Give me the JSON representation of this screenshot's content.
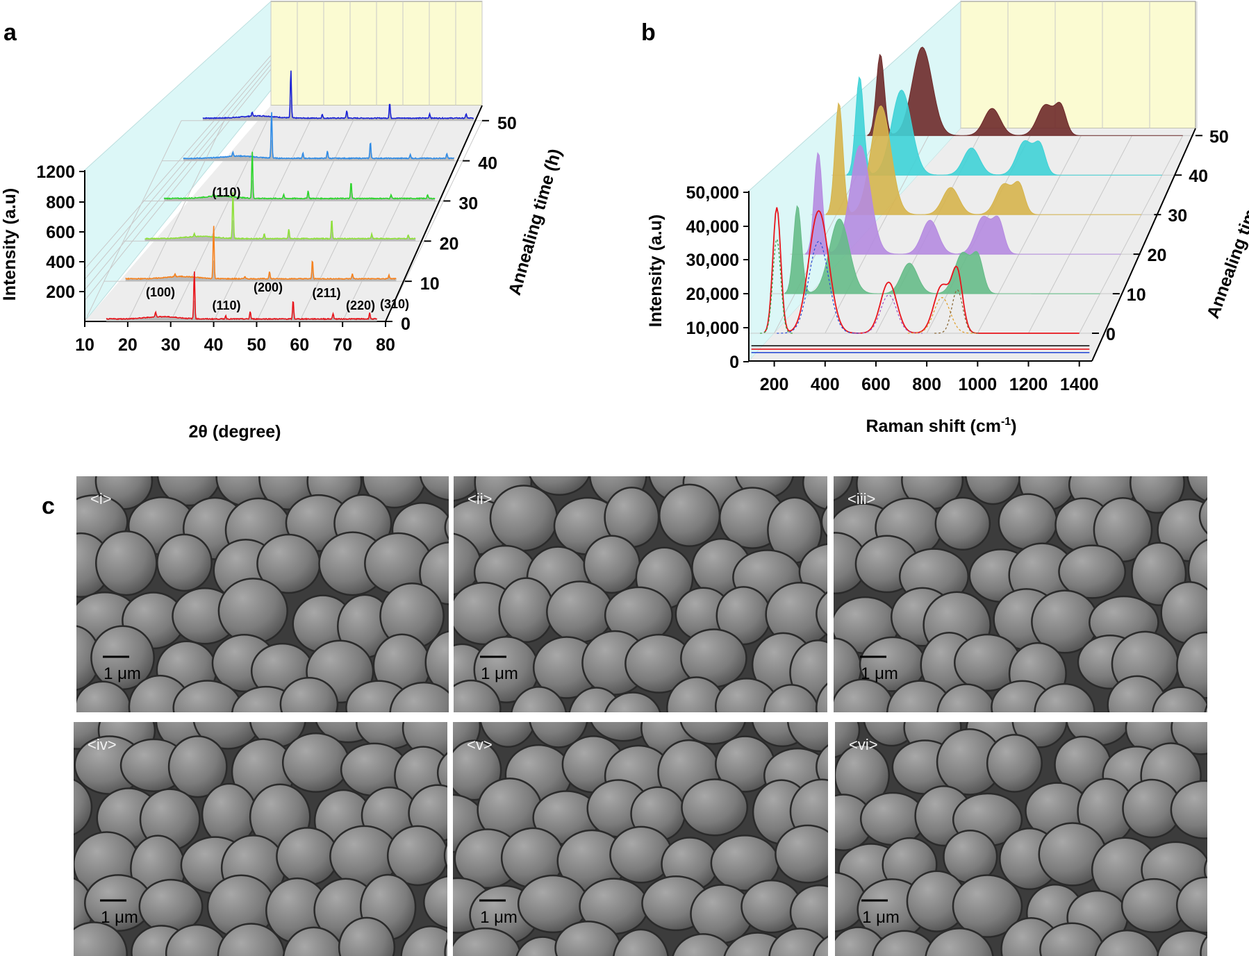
{
  "panels": {
    "a": {
      "letter": "a",
      "y_ticks": [
        "1200",
        "800",
        "600",
        "400",
        "200"
      ],
      "x_ticks": [
        "10",
        "20",
        "30",
        "40",
        "50",
        "60",
        "70",
        "80"
      ],
      "z_ticks": [
        "0",
        "10",
        "20",
        "30",
        "40",
        "50"
      ],
      "xlabel": "2θ (degree)",
      "ylabel": "Intensity (a.u)",
      "zlabel": "Annealing time (h)",
      "annotations": [
        "(100)",
        "(110)",
        "(200)",
        "(211)",
        "(220)",
        "(310)",
        "(110)",
        "(110)"
      ]
    },
    "b": {
      "letter": "b",
      "y_ticks": [
        "50,000",
        "40,000",
        "30,000",
        "20,000",
        "10,000",
        "0"
      ],
      "x_ticks": [
        "200",
        "400",
        "600",
        "800",
        "1000",
        "1200",
        "1400"
      ],
      "z_ticks": [
        "0",
        "10",
        "20",
        "30",
        "40",
        "50"
      ],
      "xlabel": "Raman shift (cm",
      "xlabel_sup": "-1",
      "xlabel_end": ")",
      "ylabel": "Intensity (a.u)",
      "zlabel": "Annealing time (h)"
    },
    "c": {
      "letter": "c",
      "images": [
        {
          "label": "<i>",
          "scale": "1 μm"
        },
        {
          "label": "<ii>",
          "scale": "1 μm"
        },
        {
          "label": "<iii>",
          "scale": "1 μm"
        },
        {
          "label": "<iv>",
          "scale": "1 μm"
        },
        {
          "label": "<v>",
          "scale": "1 μm"
        },
        {
          "label": "<vi>",
          "scale": "1 μm"
        }
      ]
    }
  },
  "chart_data": [
    {
      "type": "line",
      "panel": "a",
      "view": "3d-waterfall",
      "xlabel": "2θ (degree)",
      "ylabel": "Intensity (a.u)",
      "zlabel": "Annealing time (h)",
      "xlim": [
        10,
        80
      ],
      "z_values": [
        0,
        10,
        20,
        30,
        40,
        50
      ],
      "series": [
        {
          "z": 0,
          "color": "#e8141b",
          "peaks": [
            [
              26.5,
              40
            ],
            [
              35.5,
              380
            ],
            [
              42.8,
              25
            ],
            [
              48.5,
              60
            ],
            [
              58.5,
              150
            ],
            [
              67.8,
              45
            ],
            [
              76.3,
              50
            ]
          ]
        },
        {
          "z": 10,
          "color": "#f5821f",
          "peaks": [
            [
              26.5,
              20
            ],
            [
              35.5,
              420
            ],
            [
              42.8,
              20
            ],
            [
              48.5,
              60
            ],
            [
              58.5,
              150
            ],
            [
              67.8,
              40
            ],
            [
              76.3,
              30
            ]
          ]
        },
        {
          "z": 20,
          "color": "#8ee03a",
          "peaks": [
            [
              26.5,
              25
            ],
            [
              35.5,
              370
            ],
            [
              42.8,
              40
            ],
            [
              48.5,
              75
            ],
            [
              58.5,
              150
            ],
            [
              67.8,
              35
            ],
            [
              76.3,
              30
            ]
          ]
        },
        {
          "z": 30,
          "color": "#2bd52a",
          "peaks": [
            [
              26.5,
              30
            ],
            [
              35.5,
              370
            ],
            [
              42.8,
              30
            ],
            [
              48.5,
              60
            ],
            [
              58.5,
              130
            ],
            [
              67.8,
              30
            ],
            [
              76.3,
              30
            ]
          ]
        },
        {
          "z": 40,
          "color": "#2f8be6",
          "peaks": [
            [
              26.5,
              35
            ],
            [
              35.5,
              370
            ],
            [
              42.8,
              40
            ],
            [
              48.5,
              60
            ],
            [
              58.5,
              130
            ],
            [
              67.8,
              30
            ],
            [
              76.3,
              35
            ]
          ]
        },
        {
          "z": 50,
          "color": "#1a22d6",
          "peaks": [
            [
              26.5,
              30
            ],
            [
              35.5,
              380
            ],
            [
              42.8,
              30
            ],
            [
              48.5,
              60
            ],
            [
              58.5,
              120
            ],
            [
              67.8,
              35
            ],
            [
              76.3,
              35
            ]
          ]
        }
      ],
      "peak_labels": [
        {
          "label": "(100)",
          "x": 26.5
        },
        {
          "label": "(110)",
          "x": 42.8
        },
        {
          "label": "(200)",
          "x": 48.5
        },
        {
          "label": "(211)",
          "x": 58.5
        },
        {
          "label": "(220)",
          "x": 67.8
        },
        {
          "label": "(310)",
          "x": 76.3
        },
        {
          "label": "(110)",
          "x": 35.5
        }
      ]
    },
    {
      "type": "area",
      "panel": "b",
      "view": "3d-waterfall",
      "xlabel": "Raman shift (cm-1)",
      "ylabel": "Intensity (a.u)",
      "zlabel": "Annealing time (h)",
      "xlim": [
        100,
        1400
      ],
      "ylim": [
        0,
        50000
      ],
      "z_values": [
        0,
        10,
        20,
        30,
        40,
        50
      ],
      "series": [
        {
          "z": 0,
          "color": "#e8141b",
          "peaks": [
            [
              210,
              37000
            ],
            [
              375,
              36000
            ],
            [
              650,
              15000
            ],
            [
              860,
              14000
            ],
            [
              920,
              17000
            ]
          ]
        },
        {
          "z": 10,
          "color": "#66bb88",
          "peaks": [
            [
              210,
              26000
            ],
            [
              375,
              22000
            ],
            [
              650,
              9000
            ],
            [
              860,
              12000
            ],
            [
              920,
              10000
            ]
          ]
        },
        {
          "z": 20,
          "color": "#b58be0",
          "peaks": [
            [
              210,
              30000
            ],
            [
              375,
              32000
            ],
            [
              650,
              10000
            ],
            [
              860,
              11000
            ],
            [
              920,
              9000
            ]
          ]
        },
        {
          "z": 30,
          "color": "#d6b44c",
          "peaks": [
            [
              210,
              33000
            ],
            [
              375,
              32000
            ],
            [
              650,
              8000
            ],
            [
              860,
              9000
            ],
            [
              920,
              8000
            ]
          ]
        },
        {
          "z": 40,
          "color": "#3fd1d6",
          "peaks": [
            [
              210,
              29000
            ],
            [
              375,
              25000
            ],
            [
              650,
              8000
            ],
            [
              860,
              10000
            ],
            [
              920,
              8000
            ]
          ]
        },
        {
          "z": 50,
          "color": "#6e2a2a",
          "peaks": [
            [
              210,
              24000
            ],
            [
              375,
              26000
            ],
            [
              650,
              8000
            ],
            [
              860,
              9000
            ],
            [
              920,
              8000
            ]
          ]
        }
      ]
    }
  ]
}
